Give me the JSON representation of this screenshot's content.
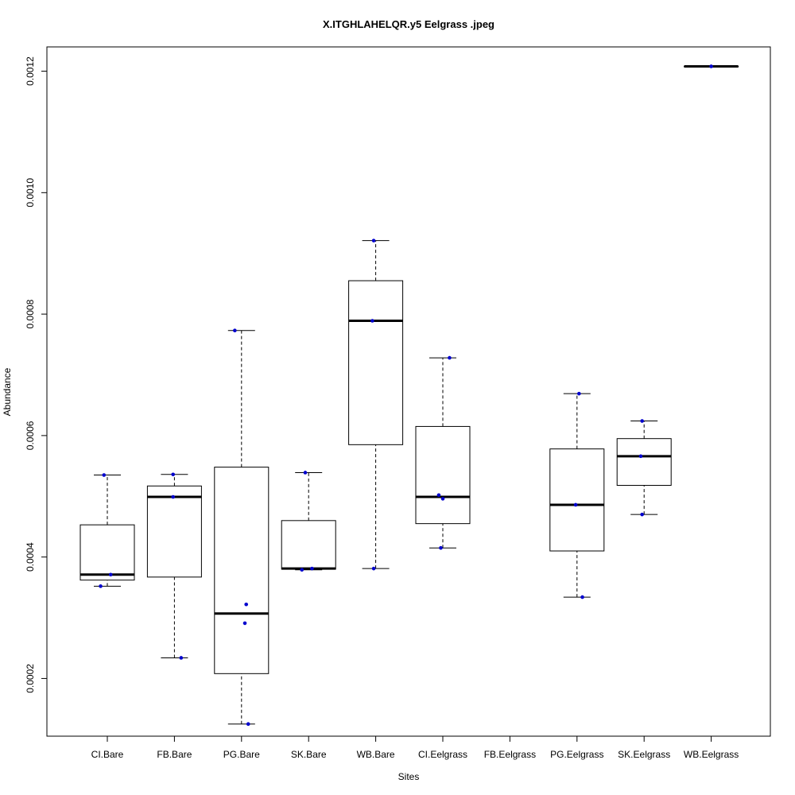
{
  "chart_data": {
    "type": "boxplot",
    "title": "X.ITGHLAHELQR.y5 Eelgrass .jpeg",
    "xlabel": "Sites",
    "ylabel": "Abundance",
    "ylim": [
      0.000105,
      0.00124
    ],
    "y_ticks": [
      0.0002,
      0.0004,
      0.0006,
      0.0008,
      0.001,
      0.0012
    ],
    "y_tick_labels": [
      "0.0002",
      "0.0004",
      "0.0006",
      "0.0008",
      "0.0010",
      "0.0012"
    ],
    "categories": [
      "CI.Bare",
      "FB.Bare",
      "PG.Bare",
      "SK.Bare",
      "WB.Bare",
      "CI.Eelgrass",
      "FB.Eelgrass",
      "PG.Eelgrass",
      "SK.Eelgrass",
      "WB.Eelgrass"
    ],
    "boxes": [
      {
        "category": "CI.Bare",
        "whisker_low": 0.000352,
        "q1": 0.000362,
        "median": 0.000371,
        "q3": 0.000453,
        "whisker_high": 0.000535,
        "points": [
          0.000352,
          0.000371,
          0.000535
        ],
        "jitter": [
          -0.1,
          0.05,
          -0.05
        ]
      },
      {
        "category": "FB.Bare",
        "whisker_low": 0.000234,
        "q1": 0.000367,
        "median": 0.000499,
        "q3": 0.000517,
        "whisker_high": 0.000536,
        "points": [
          0.000234,
          0.000499,
          0.000536
        ],
        "jitter": [
          0.1,
          -0.02,
          -0.02
        ]
      },
      {
        "category": "PG.Bare",
        "whisker_low": 0.000125,
        "q1": 0.000208,
        "median": 0.000307,
        "q3": 0.000548,
        "whisker_high": 0.000773,
        "points": [
          0.000125,
          0.000291,
          0.000322,
          0.000773
        ],
        "jitter": [
          0.1,
          0.05,
          0.07,
          -0.1
        ]
      },
      {
        "category": "SK.Bare",
        "whisker_low": 0.000379,
        "q1": 0.00038,
        "median": 0.000381,
        "q3": 0.00046,
        "whisker_high": 0.000539,
        "points": [
          0.000379,
          0.000381,
          0.000539
        ],
        "jitter": [
          -0.1,
          0.05,
          -0.05
        ]
      },
      {
        "category": "WB.Bare",
        "whisker_low": 0.000381,
        "q1": 0.000585,
        "median": 0.000789,
        "q3": 0.000855,
        "whisker_high": 0.000921,
        "points": [
          0.000381,
          0.000789,
          0.000921
        ],
        "jitter": [
          -0.03,
          -0.05,
          -0.03
        ]
      },
      {
        "category": "CI.Eelgrass",
        "whisker_low": 0.000415,
        "q1": 0.000455,
        "median": 0.000499,
        "q3": 0.000615,
        "whisker_high": 0.000728,
        "points": [
          0.000415,
          0.000496,
          0.000502,
          0.000728
        ],
        "jitter": [
          -0.03,
          0.0,
          -0.06,
          0.1
        ]
      },
      {
        "category": "FB.Eelgrass",
        "whisker_low": null,
        "q1": null,
        "median": null,
        "q3": null,
        "whisker_high": null,
        "points": [],
        "jitter": []
      },
      {
        "category": "PG.Eelgrass",
        "whisker_low": 0.000334,
        "q1": 0.00041,
        "median": 0.000486,
        "q3": 0.000578,
        "whisker_high": 0.000669,
        "points": [
          0.000334,
          0.000486,
          0.000669
        ],
        "jitter": [
          0.08,
          -0.02,
          0.03
        ]
      },
      {
        "category": "SK.Eelgrass",
        "whisker_low": 0.00047,
        "q1": 0.000518,
        "median": 0.000566,
        "q3": 0.000595,
        "whisker_high": 0.000624,
        "points": [
          0.00047,
          0.000566,
          0.000624
        ],
        "jitter": [
          -0.03,
          -0.05,
          -0.03
        ]
      },
      {
        "category": "WB.Eelgrass",
        "whisker_low": 0.001208,
        "q1": 0.001208,
        "median": 0.001208,
        "q3": 0.001208,
        "whisker_high": 0.001208,
        "points": [
          0.001208
        ],
        "jitter": [
          0.0
        ]
      }
    ],
    "colors": {
      "points": "#0000cd",
      "box": "#000000",
      "background": "#ffffff"
    },
    "grid": false,
    "legend": "none"
  }
}
